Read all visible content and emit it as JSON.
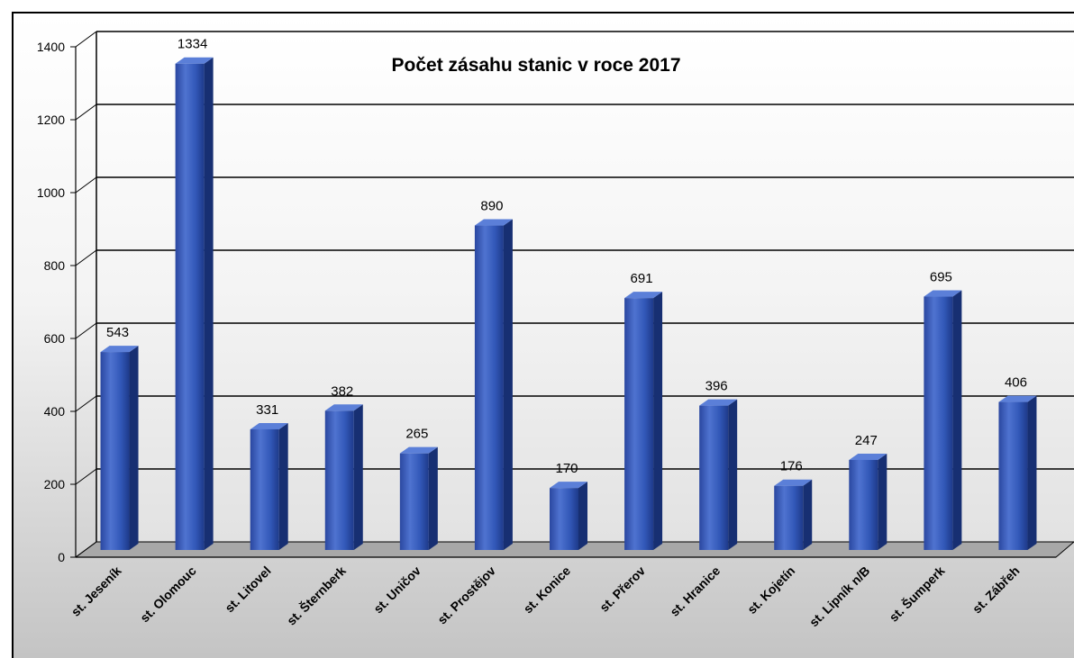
{
  "chart_data": {
    "type": "bar",
    "title": "Počet zásahu stanic v roce 2017",
    "xlabel": "",
    "ylabel": "",
    "ylim": [
      0,
      1400
    ],
    "yticks": [
      0,
      200,
      400,
      600,
      800,
      1000,
      1200,
      1400
    ],
    "categories": [
      "st. Jeseník",
      "st. Olomouc",
      "st. Litovel",
      "st. Šternberk",
      "st. Uničov",
      "st. Prostějov",
      "st. Konice",
      "st. Přerov",
      "st. Hranice",
      "st. Kojetín",
      "st. Lipník n/B",
      "st. Šumperk",
      "st. Zábřeh"
    ],
    "values": [
      543,
      1334,
      331,
      382,
      265,
      890,
      170,
      691,
      396,
      176,
      247,
      695,
      406
    ],
    "grid": true,
    "legend": "none",
    "bar_color": "#2b4ea8",
    "floor_color": "#a8a8a8"
  }
}
